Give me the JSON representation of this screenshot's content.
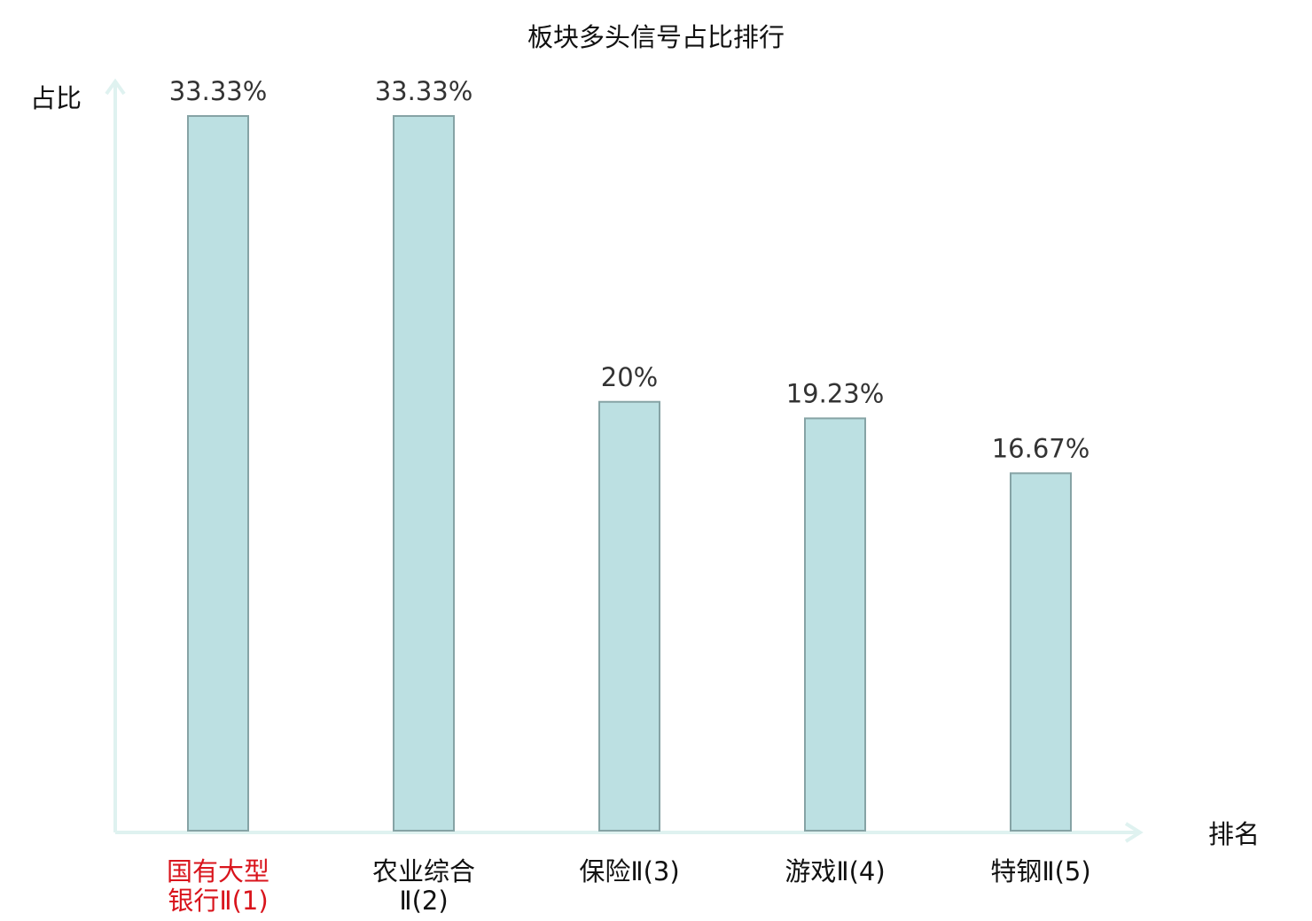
{
  "chart_data": {
    "type": "bar",
    "title": "板块多头信号占比排行",
    "ylabel": "占比",
    "xlabel": "排名",
    "ylim": [
      0,
      33.33
    ],
    "grid": false,
    "categories": [
      {
        "lines": [
          "国有大型",
          "银行Ⅱ(1)"
        ],
        "highlight": true
      },
      {
        "lines": [
          "农业综合",
          "Ⅱ(2)"
        ],
        "highlight": false
      },
      {
        "lines": [
          "保险Ⅱ(3)"
        ],
        "highlight": false
      },
      {
        "lines": [
          "游戏Ⅱ(4)"
        ],
        "highlight": false
      },
      {
        "lines": [
          "特钢Ⅱ(5)"
        ],
        "highlight": false
      }
    ],
    "values": [
      33.33,
      33.33,
      20,
      19.23,
      16.67
    ],
    "value_labels": [
      "33.33%",
      "33.33%",
      "20%",
      "19.23%",
      "16.67%"
    ],
    "colors": {
      "bar_fill": "#bce0e2",
      "bar_stroke": "#86a3a5",
      "axis": "#dff2f0",
      "text": "#333333",
      "label": "#111111",
      "highlight": "#d9141c"
    }
  }
}
